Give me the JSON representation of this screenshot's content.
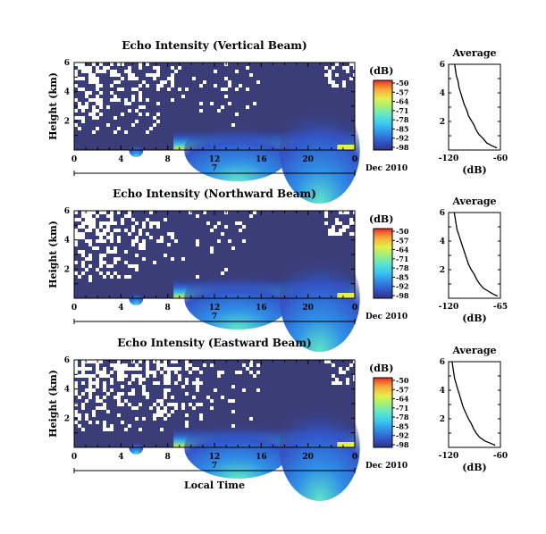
{
  "chart_data": [
    {
      "type": "heatmap",
      "title": "Echo Intensity (Vertical Beam)",
      "ylabel": "Height (km)",
      "xlim": [
        0,
        24
      ],
      "ylim": [
        0,
        6
      ],
      "x_ticks": [
        "0",
        "4",
        "8",
        "12",
        "16",
        "20",
        "0"
      ],
      "y_ticks": [
        "2",
        "4",
        "6"
      ],
      "date_label": "7",
      "date_suffix": "Dec 2010",
      "colorbar": {
        "unit": "(dB)",
        "ticks": [
          "-50",
          "-57",
          "-64",
          "-71",
          "-78",
          "-85",
          "-92",
          "-98"
        ]
      },
      "average_profile": {
        "title": "Average",
        "xlabel": "(dB)",
        "x_ticks": [
          "-120",
          "-60"
        ],
        "y_ticks": [
          "2",
          "4",
          "6"
        ],
        "xlim": [
          -120,
          -60
        ],
        "points": [
          [
            -113,
            6.0
          ],
          [
            -112,
            5.6
          ],
          [
            -111,
            5.2
          ],
          [
            -109,
            4.8
          ],
          [
            -108,
            4.4
          ],
          [
            -106,
            4.0
          ],
          [
            -104,
            3.6
          ],
          [
            -102,
            3.2
          ],
          [
            -99,
            2.8
          ],
          [
            -97,
            2.4
          ],
          [
            -94,
            2.1
          ],
          [
            -91,
            1.8
          ],
          [
            -88,
            1.4
          ],
          [
            -85,
            1.1
          ],
          [
            -80,
            0.8
          ],
          [
            -76,
            0.5
          ],
          [
            -70,
            0.3
          ],
          [
            -64,
            0.15
          ]
        ]
      }
    },
    {
      "type": "heatmap",
      "title": "Echo Intensity (Northward Beam)",
      "ylabel": "Height (km)",
      "xlim": [
        0,
        24
      ],
      "ylim": [
        0,
        6
      ],
      "x_ticks": [
        "0",
        "4",
        "8",
        "12",
        "16",
        "20",
        "0"
      ],
      "y_ticks": [
        "2",
        "4",
        "6"
      ],
      "date_label": "7",
      "date_suffix": "Dec 2010",
      "colorbar": {
        "unit": "(dB)",
        "ticks": [
          "-50",
          "-57",
          "-64",
          "-71",
          "-78",
          "-85",
          "-92",
          "-98"
        ]
      },
      "average_profile": {
        "title": "Average",
        "xlabel": "(dB)",
        "x_ticks": [
          "-120",
          "-65"
        ],
        "y_ticks": [
          "2",
          "4",
          "6"
        ],
        "xlim": [
          -120,
          -65
        ],
        "points": [
          [
            -114,
            6.0
          ],
          [
            -113,
            5.6
          ],
          [
            -112,
            5.2
          ],
          [
            -111,
            4.8
          ],
          [
            -109,
            4.4
          ],
          [
            -107,
            4.0
          ],
          [
            -105,
            3.6
          ],
          [
            -103,
            3.2
          ],
          [
            -101,
            2.8
          ],
          [
            -99,
            2.4
          ],
          [
            -96,
            2.0
          ],
          [
            -93,
            1.7
          ],
          [
            -90,
            1.3
          ],
          [
            -87,
            1.0
          ],
          [
            -83,
            0.7
          ],
          [
            -78,
            0.5
          ],
          [
            -73,
            0.3
          ],
          [
            -68,
            0.15
          ]
        ]
      }
    },
    {
      "type": "heatmap",
      "title": "Echo Intensity (Eastward Beam)",
      "ylabel": "Height (km)",
      "xlabel": "Local Time",
      "xlim": [
        0,
        24
      ],
      "ylim": [
        0,
        6
      ],
      "x_ticks": [
        "0",
        "4",
        "8",
        "12",
        "16",
        "20",
        "0"
      ],
      "y_ticks": [
        "2",
        "4",
        "6"
      ],
      "date_label": "7",
      "date_suffix": "Dec 2010",
      "colorbar": {
        "unit": "(dB)",
        "ticks": [
          "-50",
          "-57",
          "-64",
          "-71",
          "-78",
          "-85",
          "-92",
          "-98"
        ]
      },
      "average_profile": {
        "title": "Average",
        "xlabel": "(dB)",
        "x_ticks": [
          "-120",
          "-60"
        ],
        "y_ticks": [
          "2",
          "4",
          "6"
        ],
        "xlim": [
          -120,
          -60
        ],
        "points": [
          [
            -116,
            6.0
          ],
          [
            -115,
            5.6
          ],
          [
            -114,
            5.2
          ],
          [
            -113,
            4.8
          ],
          [
            -111,
            4.4
          ],
          [
            -109,
            4.0
          ],
          [
            -107,
            3.6
          ],
          [
            -105,
            3.2
          ],
          [
            -103,
            2.8
          ],
          [
            -100,
            2.4
          ],
          [
            -97,
            2.0
          ],
          [
            -94,
            1.7
          ],
          [
            -91,
            1.3
          ],
          [
            -88,
            1.0
          ],
          [
            -84,
            0.7
          ],
          [
            -78,
            0.45
          ],
          [
            -72,
            0.3
          ],
          [
            -66,
            0.15
          ]
        ]
      }
    }
  ],
  "colors": {
    "background_level": "#3a3d78",
    "colormap": [
      "#2e3380",
      "#3355c8",
      "#2f8fe6",
      "#3cc8f0",
      "#5fe6c8",
      "#9ef07a",
      "#e6ee4a",
      "#f4b13c",
      "#f26a2e",
      "#e2282a"
    ]
  }
}
